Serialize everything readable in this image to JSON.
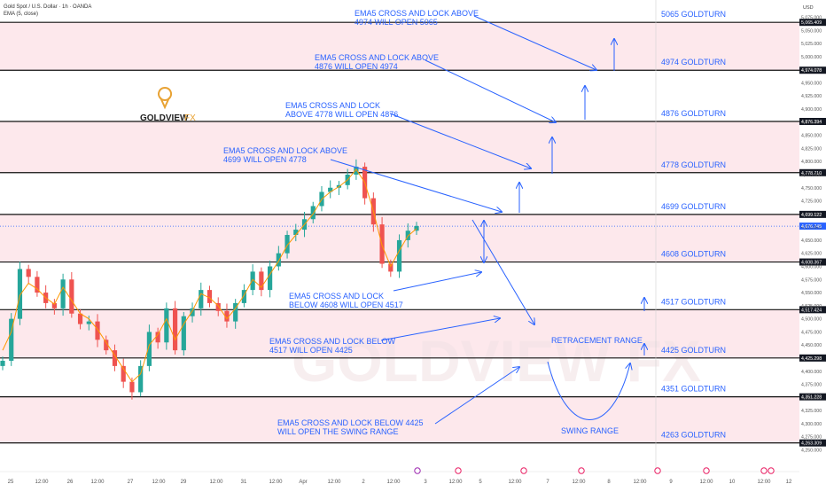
{
  "header": {
    "symbol_line": "Gold Spot / U.S. Dollar · 1h · OANDA",
    "indicator_line": "EMA (5, close)"
  },
  "price_axis": {
    "currency": "USD",
    "ticks": [
      "5,100.000",
      "5,075.000",
      "5,050.000",
      "5,025.000",
      "5,000.000",
      "4,975.000",
      "4,950.000",
      "4,925.000",
      "4,900.000",
      "4,875.000",
      "4,850.000",
      "4,825.000",
      "4,800.000",
      "4,775.000",
      "4,750.000",
      "4,725.000",
      "4,700.000",
      "4,675.000",
      "4,650.000",
      "4,625.000",
      "4,600.000",
      "4,575.000",
      "4,550.000",
      "4,525.000",
      "4,500.000",
      "4,475.000",
      "4,450.000",
      "4,425.000",
      "4,400.000",
      "4,375.000",
      "4,350.000",
      "4,325.000",
      "4,300.000",
      "4,275.000",
      "4,250.000",
      "4,225.000"
    ],
    "flags": [
      {
        "label": "5,065.409",
        "value": 5065.409
      },
      {
        "label": "4,974.078",
        "value": 4974.078
      },
      {
        "label": "4,876.394",
        "value": 4876.394
      },
      {
        "label": "4,778.710",
        "value": 4778.71
      },
      {
        "label": "4,699.122",
        "value": 4699.122
      },
      {
        "label": "4,676.745",
        "value": 4676.745,
        "current": true
      },
      {
        "label": "4,608.367",
        "value": 4608.367
      },
      {
        "label": "4,517.424",
        "value": 4517.424
      },
      {
        "label": "4,425.298",
        "value": 4425.298
      },
      {
        "label": "4,351.228",
        "value": 4351.228
      },
      {
        "label": "4,263.309",
        "value": 4263.309
      }
    ]
  },
  "time_axis": {
    "ticks": [
      "25",
      "12:00",
      "26",
      "12:00",
      "27",
      "12:00",
      "29",
      "12:00",
      "31",
      "12:00",
      "Apr",
      "12:00",
      "2",
      "12:00",
      "3",
      "12:00",
      "5",
      "12:00",
      "7",
      "12:00",
      "8",
      "12:00",
      "9",
      "12:00",
      "10",
      "12:00",
      "12"
    ]
  },
  "levels": [
    {
      "value": 5065.409,
      "label": "5065 GOLDTURN"
    },
    {
      "value": 4974.078,
      "label": "4974 GOLDTURN"
    },
    {
      "value": 4876.394,
      "label": "4876 GOLDTURN"
    },
    {
      "value": 4778.71,
      "label": "4778 GOLDTURN"
    },
    {
      "value": 4699.122,
      "label": "4699 GOLDTURN"
    },
    {
      "value": 4608.367,
      "label": "4608 GOLDTURN"
    },
    {
      "value": 4517.424,
      "label": "4517 GOLDTURN"
    },
    {
      "value": 4425.298,
      "label": "4425 GOLDTURN"
    },
    {
      "value": 4351.228,
      "label": "4351 GOLDTURN"
    },
    {
      "value": 4263.309,
      "label": "4263 GOLDTURN"
    }
  ],
  "annotations": [
    {
      "lines": [
        "EMA5 CROSS AND LOCK ABOVE",
        "4974 WILL OPEN 5065"
      ]
    },
    {
      "lines": [
        "EMA5 CROSS AND LOCK ABOVE",
        "4876 WILL OPEN 4974"
      ]
    },
    {
      "lines": [
        "EMA5 CROSS AND LOCK",
        "ABOVE 4778 WILL OPEN 4876"
      ]
    },
    {
      "lines": [
        "EMA5 CROSS AND LOCK ABOVE",
        "4699 WILL OPEN 4778"
      ]
    },
    {
      "lines": [
        "EMA5 CROSS AND LOCK",
        "BELOW 4608 WILL OPEN 4517"
      ]
    },
    {
      "lines": [
        "EMA5 CROSS AND LOCK BELOW",
        "4517 WILL OPEN 4425"
      ]
    },
    {
      "lines": [
        "EMA5 CROSS AND LOCK BELOW 4425",
        "WILL OPEN THE SWING RANGE"
      ]
    }
  ],
  "retracement_label": "RETRACEMENT RANGE",
  "swing_label": "SWING RANGE",
  "logo": {
    "name": "GOLDVIEW",
    "suffix": "FX"
  },
  "watermark": "GOLDVIEW FX",
  "colors": {
    "accent": "#2962ff",
    "up": "#26a69a",
    "down": "#ef5350",
    "ema": "#ff9800",
    "band": "#fde8ec",
    "logo": "#e8a233",
    "current": "#2962ff"
  },
  "chart_data": {
    "type": "candlestick",
    "title": "Gold Spot / U.S. Dollar · 1h · OANDA",
    "ylabel": "USD",
    "ylim": [
      4212,
      5108
    ],
    "series": [
      {
        "name": "EMA (5, close)",
        "values": [
          4440,
          4475,
          4545,
          4568,
          4557,
          4540,
          4528,
          4560,
          4535,
          4510,
          4500,
          4480,
          4455,
          4430,
          4405,
          4380,
          4395,
          4450,
          4470,
          4500,
          4460,
          4490,
          4515,
          4548,
          4540,
          4525,
          4500,
          4520,
          4545,
          4575,
          4560,
          4585,
          4610,
          4640,
          4660,
          4680,
          4700,
          4728,
          4742,
          4752,
          4765,
          4785,
          4760,
          4705,
          4640,
          4600,
          4630,
          4658,
          4672
        ]
      },
      {
        "name": "Price (close)",
        "values": [
          4420,
          4500,
          4595,
          4580,
          4550,
          4530,
          4520,
          4575,
          4510,
          4490,
          4495,
          4460,
          4440,
          4410,
          4380,
          4360,
          4410,
          4475,
          4455,
          4520,
          4440,
          4505,
          4520,
          4555,
          4530,
          4515,
          4495,
          4530,
          4555,
          4590,
          4555,
          4600,
          4625,
          4660,
          4670,
          4690,
          4715,
          4742,
          4750,
          4755,
          4775,
          4790,
          4730,
          4680,
          4605,
          4590,
          4650,
          4668,
          4677
        ]
      }
    ]
  }
}
